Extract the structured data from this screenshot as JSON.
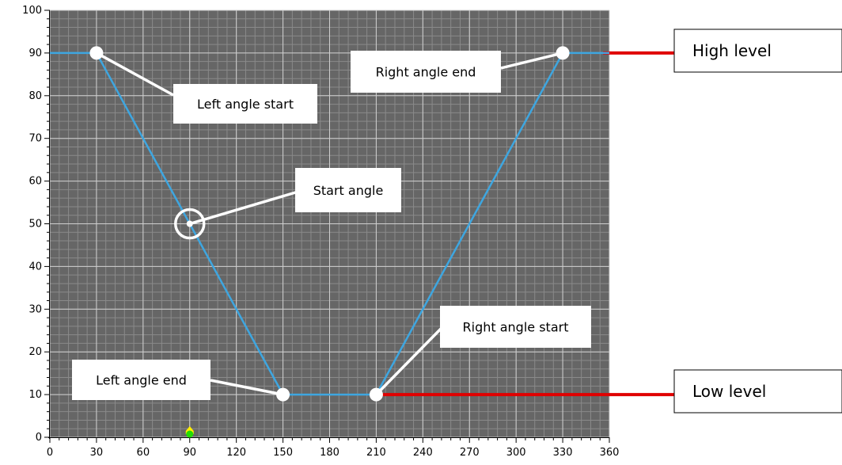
{
  "chart_data": {
    "type": "line",
    "x": [
      0,
      30,
      90,
      150,
      210,
      330,
      360
    ],
    "series": [
      {
        "values": [
          90,
          90,
          50,
          10,
          10,
          90,
          90
        ],
        "color": "#3ea6e0"
      }
    ],
    "xlim": [
      0,
      360
    ],
    "ylim": [
      0,
      100
    ],
    "x_ticks": [
      0,
      30,
      60,
      90,
      120,
      150,
      180,
      210,
      240,
      270,
      300,
      330,
      360
    ],
    "y_ticks": [
      0,
      10,
      20,
      30,
      40,
      50,
      60,
      70,
      80,
      90,
      100
    ],
    "grid": true,
    "plot_background": "#666666",
    "grid_color_major": "#cfcfcf",
    "grid_color_minor": "#8a8a8a",
    "marker_color": "#ffffff",
    "points": [
      {
        "id": "left-angle-start",
        "x": 30,
        "y": 90,
        "label": "Left angle start"
      },
      {
        "id": "start-angle",
        "x": 90,
        "y": 50,
        "label": "Start angle"
      },
      {
        "id": "left-angle-end",
        "x": 150,
        "y": 10,
        "label": "Left angle end"
      },
      {
        "id": "right-angle-start",
        "x": 210,
        "y": 10,
        "label": "Right angle start"
      },
      {
        "id": "right-angle-end",
        "x": 330,
        "y": 90,
        "label": "Right angle end"
      }
    ],
    "levels": [
      {
        "id": "high-level",
        "y": 90,
        "label": "High level",
        "color": "#e00000"
      },
      {
        "id": "low-level",
        "y": 10,
        "label": "Low level",
        "color": "#e00000"
      }
    ],
    "indicator": {
      "x": 90,
      "y": 0,
      "colors": [
        "#ffee00",
        "#22dd00"
      ]
    }
  }
}
